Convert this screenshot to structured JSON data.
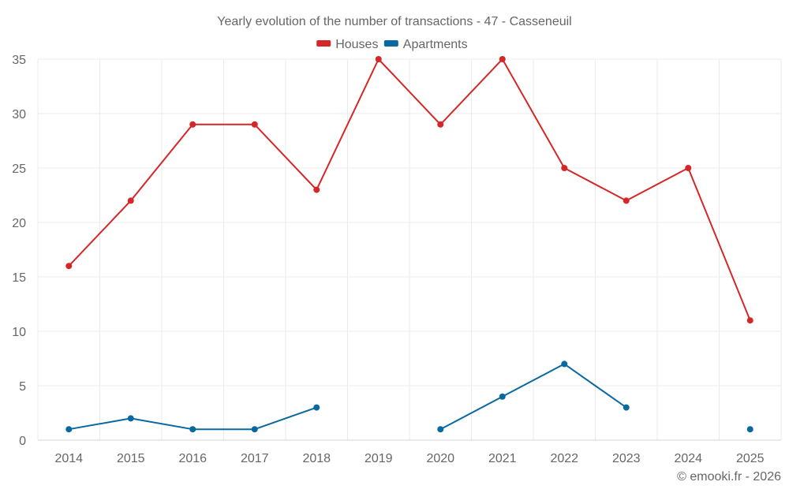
{
  "chart_data": {
    "type": "line",
    "title": "Yearly evolution of the number of transactions - 47 - Casseneuil",
    "categories": [
      "2014",
      "2015",
      "2016",
      "2017",
      "2018",
      "2019",
      "2020",
      "2021",
      "2022",
      "2023",
      "2024",
      "2025"
    ],
    "ylim": [
      0,
      35
    ],
    "yticks": [
      0,
      5,
      10,
      15,
      20,
      25,
      30,
      35
    ],
    "grid": true,
    "legend_position": "top-center",
    "series": [
      {
        "name": "Houses",
        "color": "#d62728",
        "values": [
          16,
          22,
          29,
          29,
          23,
          35,
          29,
          35,
          25,
          22,
          25,
          11
        ]
      },
      {
        "name": "Apartments",
        "color": "#0868a0",
        "values": [
          1,
          2,
          1,
          1,
          3,
          null,
          1,
          4,
          7,
          3,
          null,
          1
        ]
      }
    ]
  },
  "credit": "© emooki.fr - 2026"
}
